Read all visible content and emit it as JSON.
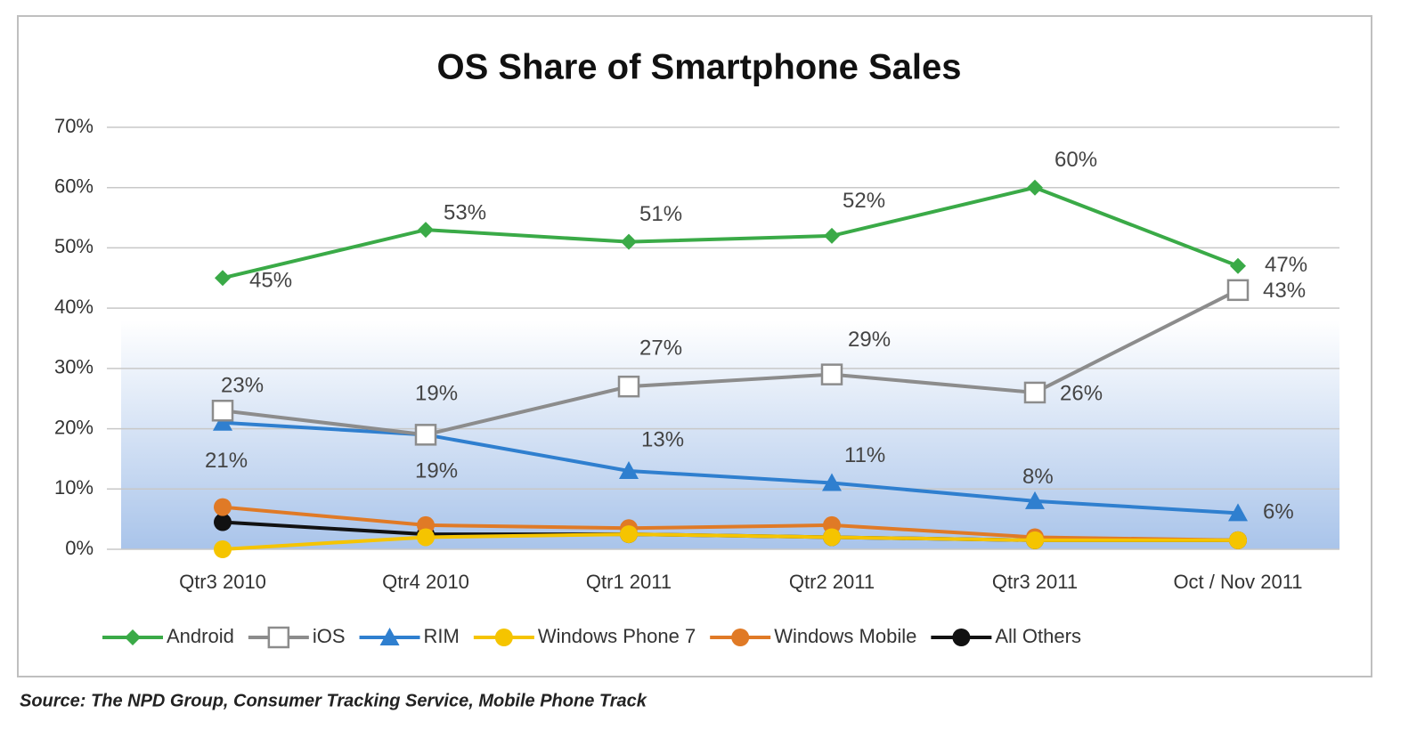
{
  "chart_data": {
    "type": "line",
    "title": "OS Share of Smartphone Sales",
    "source": "Source: The NPD Group, Consumer Tracking Service, Mobile Phone Track",
    "categories": [
      "Qtr3 2010",
      "Qtr4 2010",
      "Qtr1 2011",
      "Qtr2 2011",
      "Qtr3 2011",
      "Oct / Nov 2011"
    ],
    "ylim": [
      0,
      70
    ],
    "yticks": [
      {
        "value": 0,
        "label": "0%"
      },
      {
        "value": 10,
        "label": "10%"
      },
      {
        "value": 20,
        "label": "20%"
      },
      {
        "value": 30,
        "label": "30%"
      },
      {
        "value": 40,
        "label": "40%"
      },
      {
        "value": 50,
        "label": "50%"
      },
      {
        "value": 60,
        "label": "60%"
      },
      {
        "value": 70,
        "label": "70%"
      }
    ],
    "grid": true,
    "legend": "bottom",
    "series": [
      {
        "name": "Android",
        "color": "#3aaa47",
        "marker": "diamond",
        "values": [
          45,
          53,
          51,
          52,
          60,
          47
        ],
        "value_labels": [
          "45%",
          "53%",
          "51%",
          "52%",
          "60%",
          "47%"
        ]
      },
      {
        "name": "iOS",
        "color": "#8c8c8c",
        "marker": "square",
        "values": [
          23,
          19,
          27,
          29,
          26,
          43
        ],
        "value_labels": [
          "23%",
          "19%",
          "27%",
          "29%",
          "26%",
          "43%"
        ]
      },
      {
        "name": "RIM",
        "color": "#2f7fcf",
        "marker": "triangle",
        "values": [
          21,
          19,
          13,
          11,
          8,
          6
        ],
        "value_labels": [
          "21%",
          "19%",
          "13%",
          "11%",
          "8%",
          "6%"
        ]
      },
      {
        "name": "Windows Phone 7",
        "color": "#f5c400",
        "marker": "circle",
        "values": [
          0,
          2,
          2.5,
          2,
          1.5,
          1.5
        ]
      },
      {
        "name": "Windows Mobile",
        "color": "#e07a26",
        "marker": "circle",
        "values": [
          7,
          4,
          3.5,
          4,
          2,
          1.5
        ]
      },
      {
        "name": "All Others",
        "color": "#111111",
        "marker": "circle",
        "values": [
          4.5,
          2.5,
          2.5,
          2,
          1.5,
          1.5
        ]
      }
    ]
  }
}
